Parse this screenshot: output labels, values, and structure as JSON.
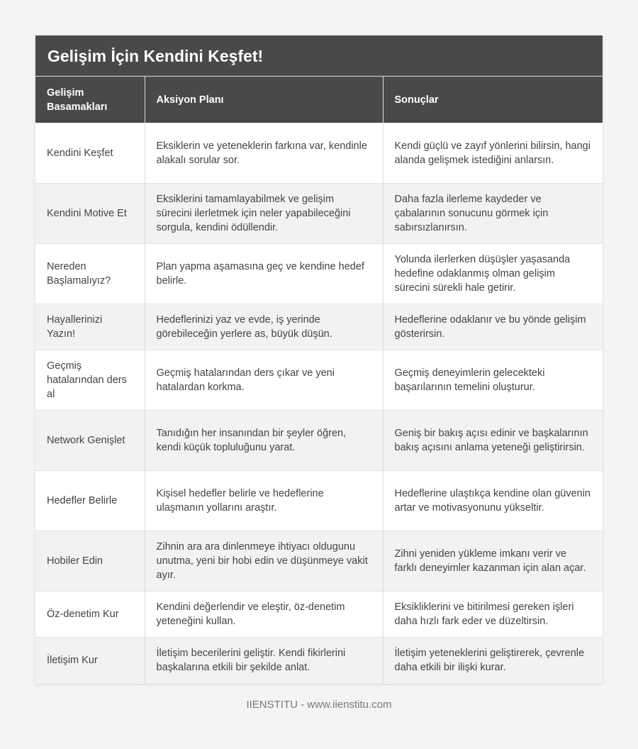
{
  "title": "Gelişim İçin Kendini Keşfet!",
  "columns": [
    "Gelişim Basamakları",
    "Aksiyon Planı",
    "Sonuçlar"
  ],
  "rows": [
    [
      "Kendini Keşfet",
      "Eksiklerin ve yeteneklerin farkına var, kendinle alakalı sorular sor.",
      "Kendi güçlü ve zayıf yönlerini bilirsin, hangi alanda gelişmek istediğini anlarsın."
    ],
    [
      "Kendini Motive Et",
      "Eksiklerini tamamlayabilmek ve gelişim sürecini ilerletmek için neler yapabileceğini sorgula, kendini ödüllendir.",
      "Daha fazla ilerleme kaydeder ve çabalarının sonucunu görmek için sabırsızlanırsın."
    ],
    [
      "Nereden Başlamalıyız?",
      "Plan yapma aşamasına geç ve kendine hedef belirle.",
      "Yolunda ilerlerken düşüşler yaşasanda hedefine odaklanmış olman gelişim sürecini sürekli hale getirir."
    ],
    [
      "Hayallerinizi Yazın!",
      "Hedeflerinizi yaz ve evde, iş yerinde görebileceğin yerlere as, büyük düşün.",
      "Hedeflerine odaklanır ve bu yönde gelişim gösterirsin."
    ],
    [
      "Geçmiş hatalarından ders al",
      "Geçmiş hatalarından ders çıkar ve yeni hatalardan korkma.",
      "Geçmiş deneyimlerin gelecekteki başarılarının temelini oluşturur."
    ],
    [
      "Network Genişlet",
      "Tanıdığın her insanından bir şeyler öğren, kendi küçük topluluğunu yarat.",
      "Geniş bir bakış açısı edinir ve başkalarının bakış açısını anlama yeteneği geliştirirsin."
    ],
    [
      "Hedefler Belirle",
      "Kişisel hedefler belirle ve hedeflerine ulaşmanın yollarını araştır.",
      "Hedeflerine ulaştıkça kendine olan güvenin artar ve motivasyonunu yükseltir."
    ],
    [
      "Hobiler Edin",
      "Zihnin ara ara dinlenmeye ihtiyacı oldugunu unutma, yeni bir hobi edin ve düşünmeye vakit ayır.",
      "Zihni yeniden yükleme imkanı verir ve farklı deneyimler kazanman için alan açar."
    ],
    [
      "Öz-denetim Kur",
      "Kendini değerlendir ve eleştir, öz-denetim yeteneğini kullan.",
      "Eksikliklerini ve bitirilmesi gereken işleri daha hızlı fark eder ve düzeltirsin."
    ],
    [
      "İletişim Kur",
      "İletişim becerilerini geliştir. Kendi fikirlerini başkalarına etkili bir şekilde anlat.",
      "İletişim yeteneklerini geliştirerek, çevrenle daha etkili bir ilişki kurar."
    ]
  ],
  "footer": "IIENSTITU - www.iienstitu.com"
}
